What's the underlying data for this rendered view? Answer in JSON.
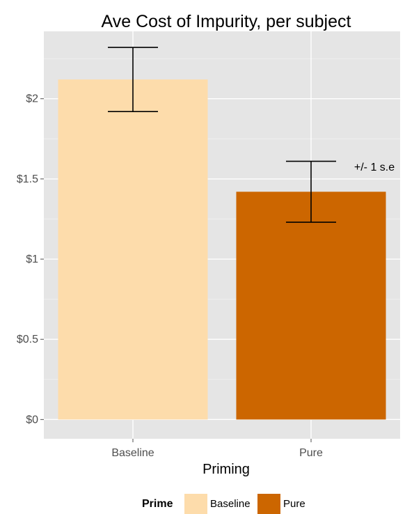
{
  "chart_data": {
    "type": "bar",
    "title": "Ave Cost of Impurity, per subject",
    "xlabel": "Priming",
    "ylabel": "",
    "categories": [
      "Baseline",
      "Pure"
    ],
    "values": [
      2.12,
      1.42
    ],
    "error_low": [
      1.92,
      1.23
    ],
    "error_high": [
      2.32,
      1.61
    ],
    "colors": [
      "#FDDCAB",
      "#CC6600"
    ],
    "ylim": [
      -0.12,
      2.42
    ],
    "yticks": [
      0,
      0.5,
      1,
      1.5,
      2
    ],
    "ytick_labels": [
      "$0",
      "$0.5",
      "$1",
      "$1.5",
      "$2"
    ],
    "annotation": {
      "text": "+/- 1 s.e",
      "x_category": "Pure",
      "y": 1.6
    },
    "grid": true,
    "panel_color": "#E5E5E5",
    "legend": {
      "title": "Prime",
      "placement": "bottom",
      "entries": [
        {
          "label": "Baseline",
          "color": "#FDDCAB"
        },
        {
          "label": "Pure",
          "color": "#CC6600"
        }
      ]
    }
  }
}
